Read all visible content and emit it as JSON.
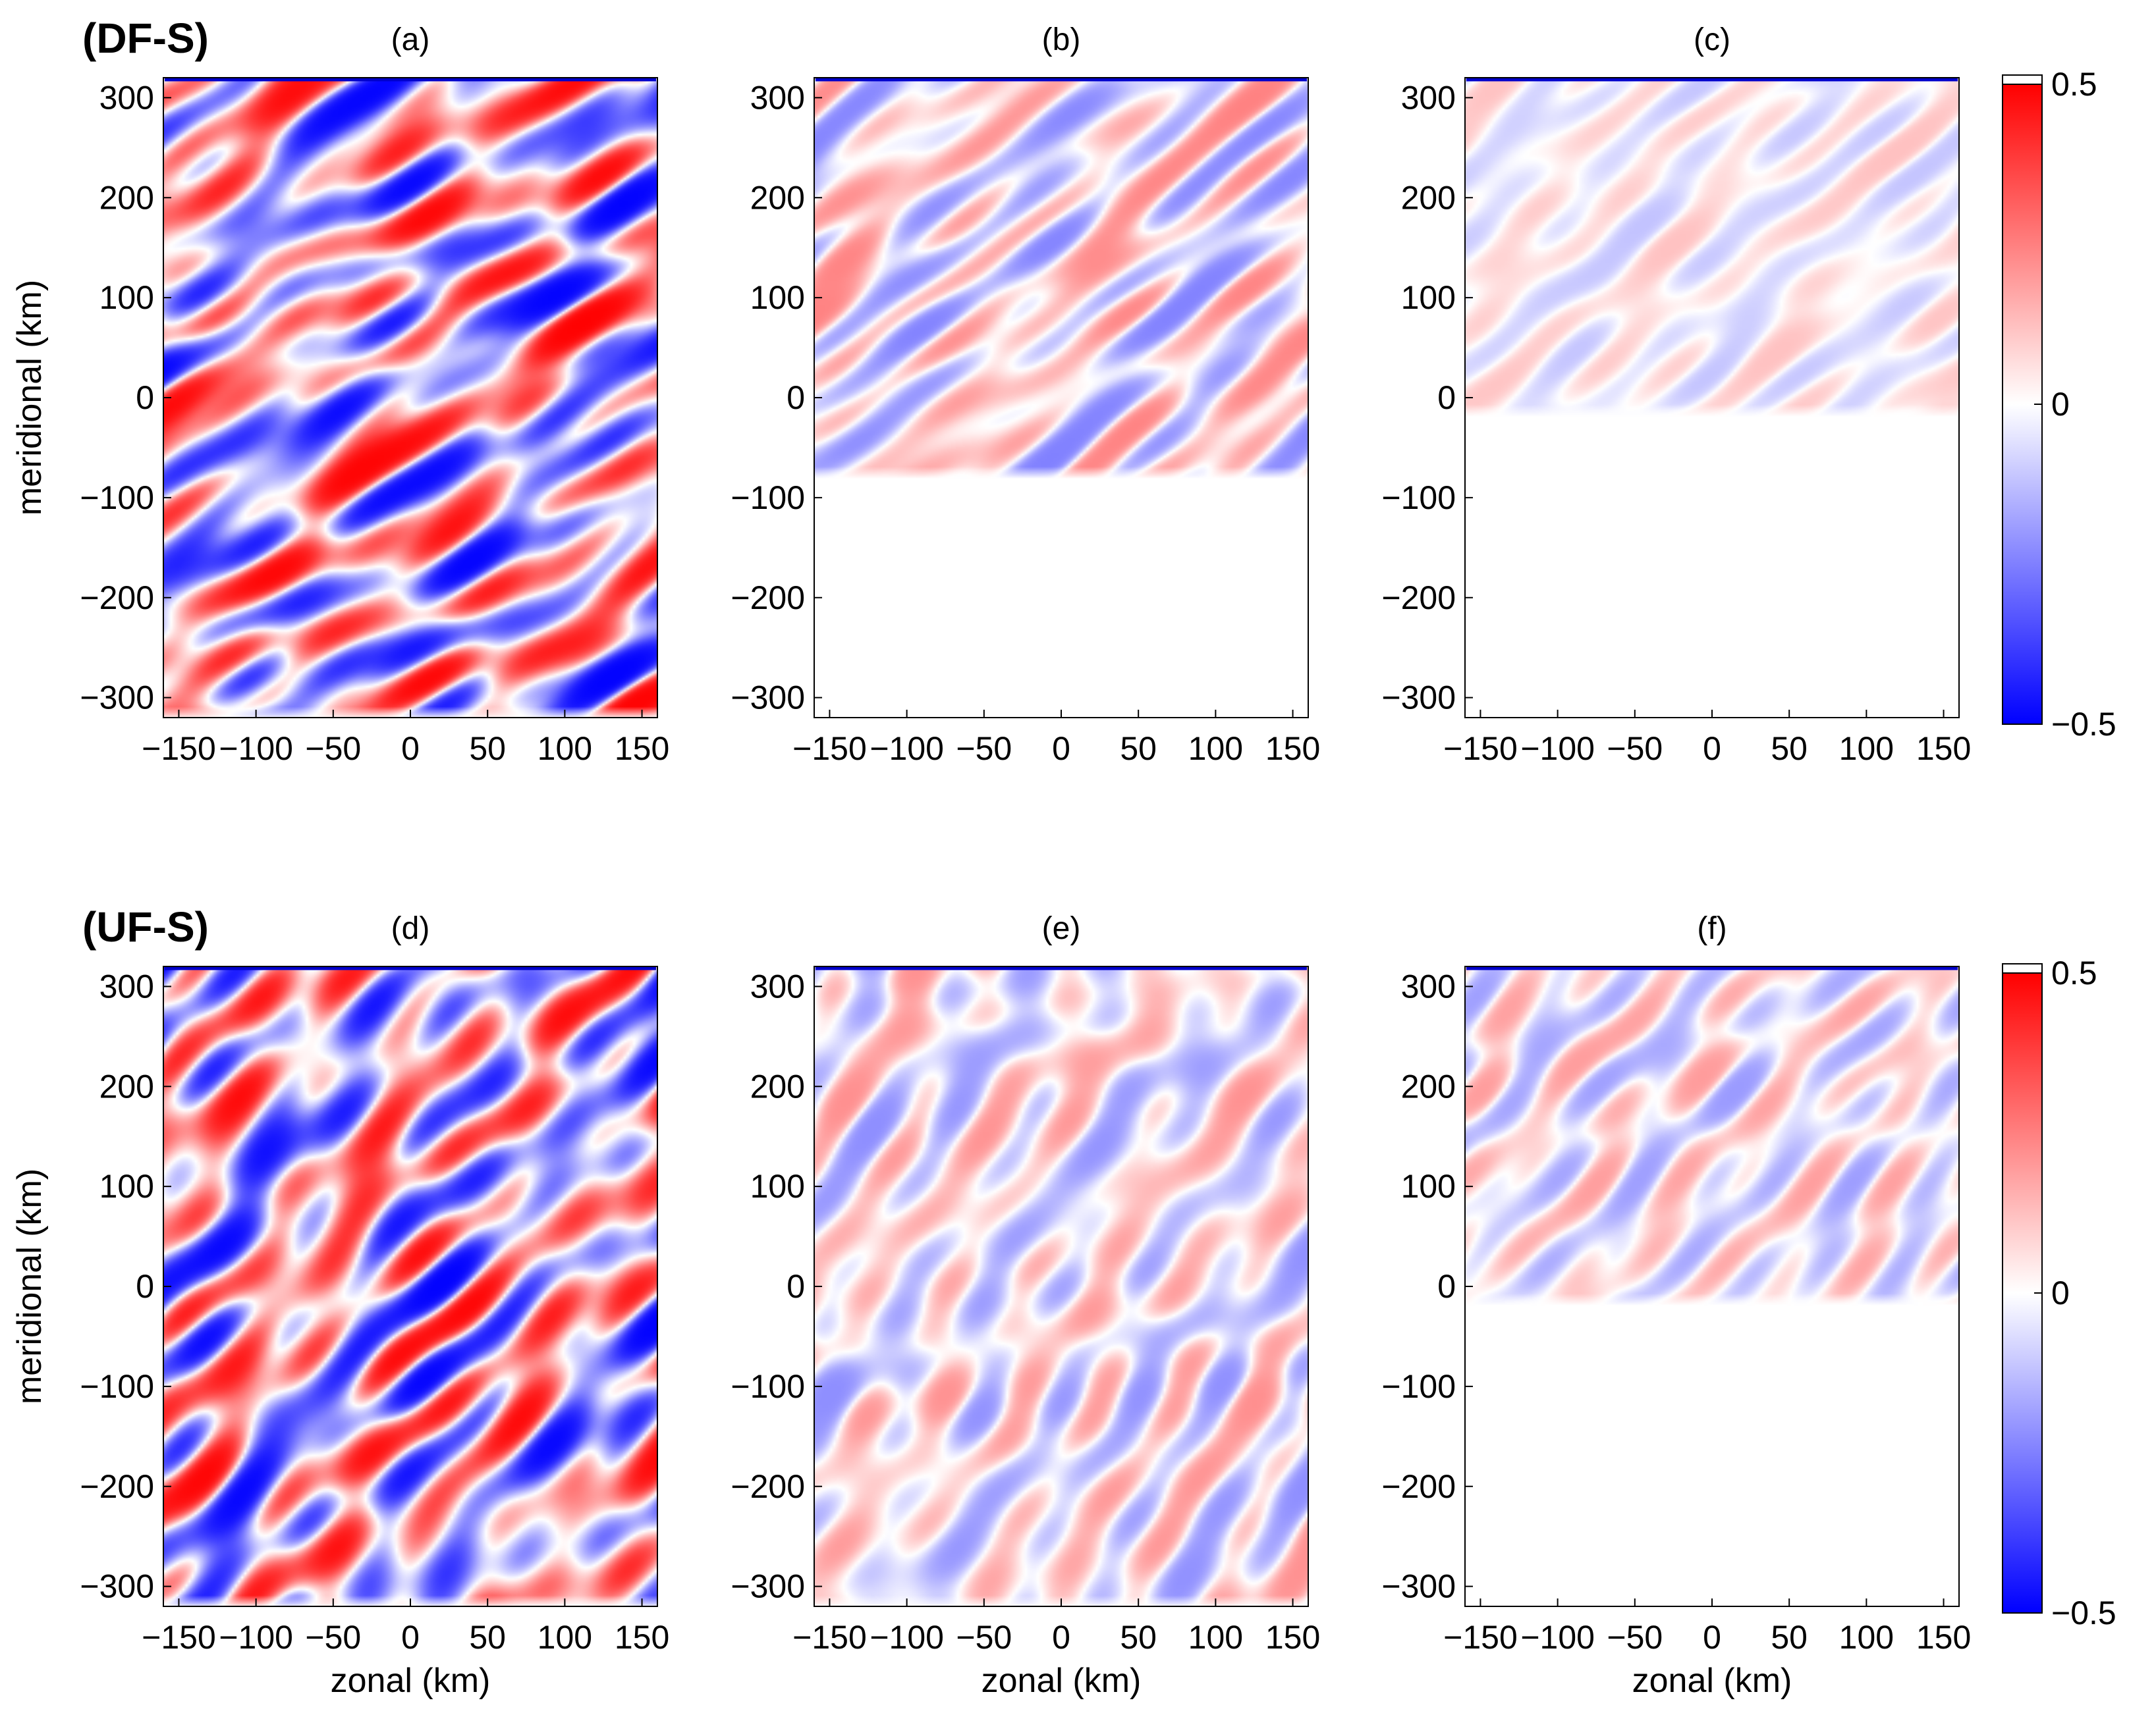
{
  "chart_data": {
    "type": "heatmap",
    "colormap": {
      "min_color": "#0000ff",
      "mid_color": "#ffffff",
      "max_color": "#ff0000"
    },
    "rows": [
      {
        "label": "(DF-S)",
        "ylabel": "meridional (km)"
      },
      {
        "label": "(UF-S)",
        "ylabel": "meridional (km)"
      }
    ],
    "colorbars": [
      {
        "ticks": [
          {
            "value": 0.5,
            "label": "0.5"
          },
          {
            "value": 0,
            "label": "0"
          },
          {
            "value": -0.5,
            "label": "−0.5"
          }
        ],
        "range": [
          -0.5,
          0.5
        ]
      },
      {
        "ticks": [
          {
            "value": 0.5,
            "label": "0.5"
          },
          {
            "value": 0,
            "label": "0"
          },
          {
            "value": -0.5,
            "label": "−0.5"
          }
        ],
        "range": [
          -0.5,
          0.5
        ]
      }
    ],
    "panels": [
      {
        "id": "a",
        "title": "(a)",
        "row": 0,
        "col": 0,
        "xlim": [
          -160,
          160
        ],
        "ylim": [
          -320,
          320
        ],
        "active_ymin": -320,
        "amplitude": 1.0,
        "xlabel": ""
      },
      {
        "id": "b",
        "title": "(b)",
        "row": 0,
        "col": 1,
        "xlim": [
          -160,
          160
        ],
        "ylim": [
          -320,
          320
        ],
        "active_ymin": -80,
        "amplitude": 0.5,
        "xlabel": ""
      },
      {
        "id": "c",
        "title": "(c)",
        "row": 0,
        "col": 2,
        "xlim": [
          -160,
          160
        ],
        "ylim": [
          -320,
          320
        ],
        "active_ymin": -18,
        "amplitude": 0.25,
        "xlabel": ""
      },
      {
        "id": "d",
        "title": "(d)",
        "row": 1,
        "col": 0,
        "xlim": [
          -160,
          160
        ],
        "ylim": [
          -320,
          320
        ],
        "active_ymin": -320,
        "amplitude": 1.0,
        "xlabel": "zonal (km)"
      },
      {
        "id": "e",
        "title": "(e)",
        "row": 1,
        "col": 1,
        "xlim": [
          -160,
          160
        ],
        "ylim": [
          -320,
          320
        ],
        "active_ymin": -320,
        "amplitude": 0.45,
        "xlabel": "zonal (km)"
      },
      {
        "id": "f",
        "title": "(f)",
        "row": 1,
        "col": 2,
        "xlim": [
          -160,
          160
        ],
        "ylim": [
          -320,
          320
        ],
        "active_ymin": -18,
        "amplitude": 0.4,
        "xlabel": "zonal (km)"
      }
    ],
    "xticks": [
      {
        "value": -150,
        "label": "−150"
      },
      {
        "value": -100,
        "label": "−100"
      },
      {
        "value": -50,
        "label": "−50"
      },
      {
        "value": 0,
        "label": "0"
      },
      {
        "value": 50,
        "label": "50"
      },
      {
        "value": 100,
        "label": "100"
      },
      {
        "value": 150,
        "label": "150"
      }
    ],
    "yticks": [
      {
        "value": 300,
        "label": "300"
      },
      {
        "value": 200,
        "label": "200"
      },
      {
        "value": 100,
        "label": "100"
      },
      {
        "value": 0,
        "label": "0"
      },
      {
        "value": -100,
        "label": "−100"
      },
      {
        "value": -200,
        "label": "−200"
      },
      {
        "value": -300,
        "label": "−300"
      }
    ]
  }
}
